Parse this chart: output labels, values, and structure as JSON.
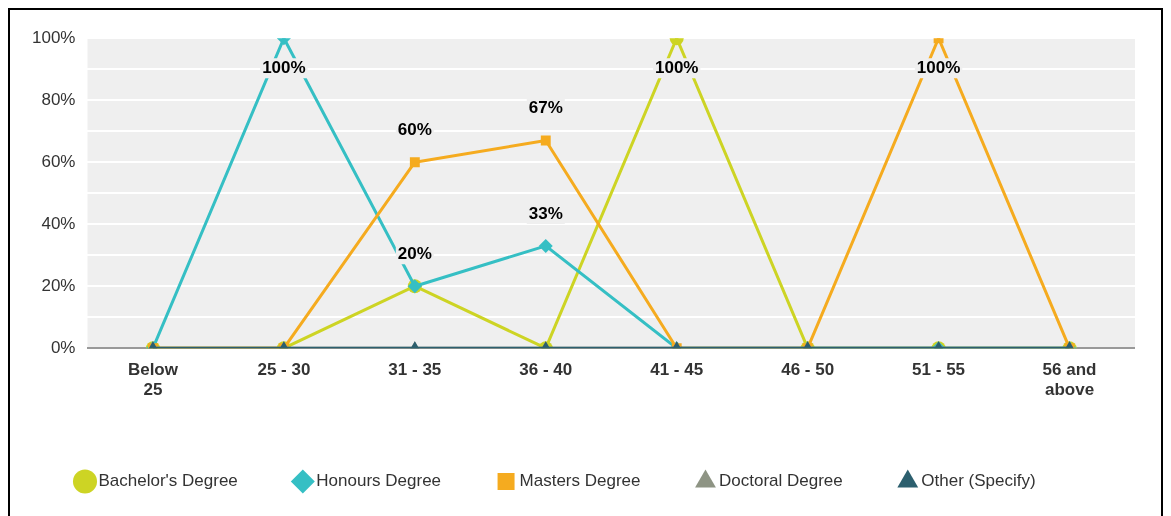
{
  "chart_data": {
    "type": "line",
    "categories": [
      "Below 25",
      "25 - 30",
      "31 - 35",
      "36 - 40",
      "41 - 45",
      "46 - 50",
      "51 - 55",
      "56 and above"
    ],
    "series": [
      {
        "name": "Bachelor's Degree",
        "color": "#cdd424",
        "marker": "circle",
        "values": [
          0,
          0,
          20,
          0,
          100,
          0,
          0,
          0
        ],
        "value_labels": [
          null,
          null,
          "20%",
          null,
          "100%",
          null,
          null,
          null
        ]
      },
      {
        "name": "Honours Degree",
        "color": "#35bfc4",
        "marker": "diamond",
        "values": [
          0,
          100,
          20,
          33,
          0,
          0,
          0,
          0
        ],
        "value_labels": [
          null,
          "100%",
          null,
          "33%",
          null,
          null,
          null,
          null
        ]
      },
      {
        "name": "Masters Degree",
        "color": "#f5ab1f",
        "marker": "square",
        "values": [
          0,
          0,
          60,
          67,
          0,
          0,
          100,
          0
        ],
        "value_labels": [
          null,
          null,
          "60%",
          "67%",
          null,
          null,
          "100%",
          null
        ]
      },
      {
        "name": "Doctoral Degree",
        "color": "#8e9484",
        "marker": "triangle",
        "values": [
          0,
          0,
          0,
          0,
          0,
          0,
          0,
          0
        ]
      },
      {
        "name": "Other (Specify)",
        "color": "#2c5f6e",
        "marker": "triangle",
        "values": [
          0,
          0,
          0,
          0,
          0,
          0,
          0,
          0
        ]
      }
    ],
    "ylim": [
      0,
      100
    ],
    "yticks": [
      {
        "value": 0,
        "label": "0%"
      },
      {
        "value": 10,
        "label": null
      },
      {
        "value": 20,
        "label": "20%"
      },
      {
        "value": 30,
        "label": null
      },
      {
        "value": 40,
        "label": "40%"
      },
      {
        "value": 50,
        "label": null
      },
      {
        "value": 60,
        "label": "60%"
      },
      {
        "value": 70,
        "label": null
      },
      {
        "value": 80,
        "label": "80%"
      },
      {
        "value": 90,
        "label": null
      },
      {
        "value": 100,
        "label": "100%"
      }
    ],
    "grid": "y",
    "legend": "bottom left",
    "line_style": "solid"
  }
}
